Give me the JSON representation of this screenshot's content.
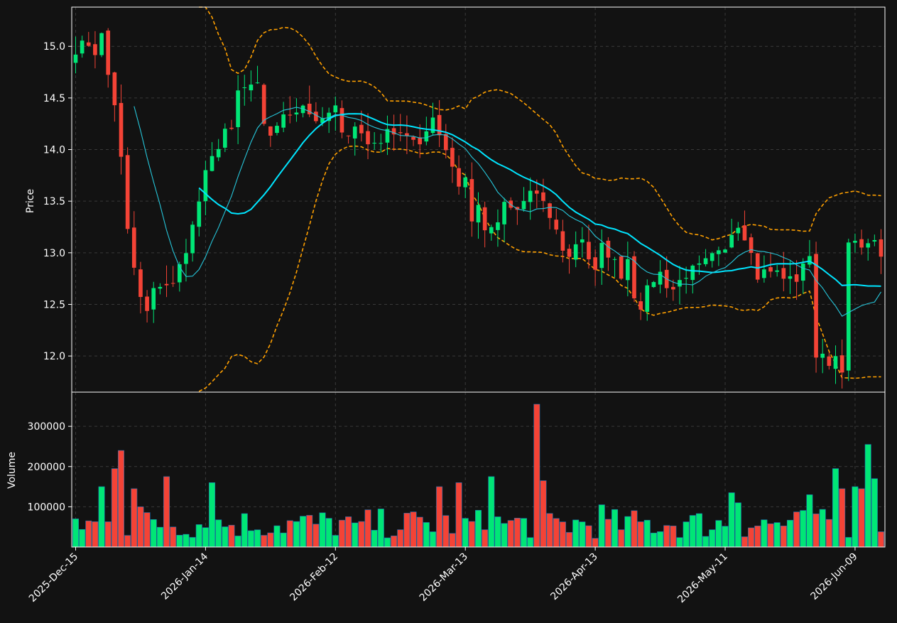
{
  "theme": {
    "background": "#121212",
    "up_color": "#00e676",
    "down_color": "#f44336",
    "volume_edge": "#1e6fb0",
    "ma_fast_color": "#26c6da",
    "ma_slow_color": "#00e5ff",
    "band_color": "#ffa000",
    "grid": true
  },
  "chart_data": {
    "type": "candlestick",
    "price_panel": {
      "ylabel": "Price",
      "ylim": [
        11.65,
        15.38
      ],
      "yticks": [
        12.0,
        12.5,
        13.0,
        13.5,
        14.0,
        14.5,
        15.0
      ],
      "ytick_labels": [
        "12.0",
        "12.5",
        "13.0",
        "13.5",
        "14.0",
        "14.5",
        "15.0"
      ]
    },
    "volume_panel": {
      "ylabel": "Volume",
      "ylim": [
        0,
        385000
      ],
      "yticks": [
        100000,
        200000,
        300000
      ],
      "ytick_labels": [
        "100000",
        "200000",
        "300000"
      ]
    },
    "x_axis": {
      "n_bars": 125,
      "xlim": [
        -0.6,
        124.6
      ],
      "ticks": [
        0,
        20,
        40,
        60,
        80,
        100,
        120
      ],
      "tick_labels": [
        "2025-Dec-15",
        "2026-Jan-14",
        "2026-Feb-12",
        "2026-Mar-13",
        "2026-Apr-13",
        "2026-May-11",
        "2026-Jun-09"
      ]
    },
    "ohlc_waypoints": [
      [
        0,
        14.98
      ],
      [
        2,
        15.03
      ],
      [
        3,
        14.95
      ],
      [
        4,
        15.1
      ],
      [
        5,
        14.72
      ],
      [
        6,
        14.45
      ],
      [
        7,
        13.9
      ],
      [
        8,
        13.2
      ],
      [
        9,
        12.85
      ],
      [
        10,
        12.55
      ],
      [
        11,
        12.42
      ],
      [
        12,
        12.62
      ],
      [
        13,
        12.7
      ],
      [
        14,
        12.7
      ],
      [
        15,
        12.68
      ],
      [
        17,
        13.05
      ],
      [
        18,
        13.25
      ],
      [
        20,
        13.75
      ],
      [
        21,
        13.9
      ],
      [
        23,
        14.2
      ],
      [
        24,
        14.15
      ],
      [
        25,
        14.55
      ],
      [
        27,
        14.62
      ],
      [
        28,
        14.6
      ],
      [
        29,
        14.2
      ],
      [
        30,
        14.15
      ],
      [
        31,
        14.25
      ],
      [
        33,
        14.35
      ],
      [
        35,
        14.45
      ],
      [
        36,
        14.35
      ],
      [
        38,
        14.25
      ],
      [
        39,
        14.35
      ],
      [
        40,
        14.4
      ],
      [
        41,
        14.12
      ],
      [
        43,
        14.25
      ],
      [
        45,
        14.05
      ],
      [
        47,
        14.1
      ],
      [
        49,
        14.2
      ],
      [
        51,
        14.15
      ],
      [
        53,
        14.0
      ],
      [
        55,
        14.35
      ],
      [
        56,
        14.15
      ],
      [
        57,
        14.02
      ],
      [
        58,
        13.85
      ],
      [
        59,
        13.65
      ],
      [
        60,
        13.75
      ],
      [
        61,
        13.3
      ],
      [
        62,
        13.45
      ],
      [
        63,
        13.25
      ],
      [
        64,
        13.2
      ],
      [
        65,
        13.3
      ],
      [
        66,
        13.45
      ],
      [
        67,
        13.42
      ],
      [
        68,
        13.4
      ],
      [
        70,
        13.6
      ],
      [
        71,
        13.55
      ],
      [
        73,
        13.35
      ],
      [
        74,
        13.2
      ],
      [
        75,
        13.05
      ],
      [
        76,
        12.95
      ],
      [
        77,
        13.1
      ],
      [
        78,
        13.15
      ],
      [
        79,
        12.95
      ],
      [
        80,
        12.8
      ],
      [
        81,
        13.05
      ],
      [
        82,
        13.0
      ],
      [
        83,
        12.9
      ],
      [
        84,
        12.8
      ],
      [
        85,
        12.95
      ],
      [
        86,
        12.6
      ],
      [
        87,
        12.5
      ],
      [
        89,
        12.75
      ],
      [
        90,
        12.8
      ],
      [
        91,
        12.7
      ],
      [
        92,
        12.65
      ],
      [
        94,
        12.8
      ],
      [
        96,
        12.85
      ],
      [
        98,
        12.95
      ],
      [
        100,
        13.0
      ],
      [
        101,
        13.2
      ],
      [
        102,
        13.3
      ],
      [
        103,
        13.15
      ],
      [
        104,
        13.05
      ],
      [
        105,
        12.8
      ],
      [
        107,
        12.85
      ],
      [
        109,
        12.75
      ],
      [
        111,
        12.75
      ],
      [
        112,
        12.85
      ],
      [
        113,
        13.0
      ],
      [
        114,
        12.0
      ],
      [
        116,
        11.95
      ],
      [
        117,
        12.0
      ],
      [
        118,
        11.9
      ],
      [
        119,
        13.05
      ],
      [
        120,
        13.1
      ],
      [
        121,
        13.0
      ],
      [
        122,
        13.15
      ],
      [
        124,
        13.0
      ]
    ],
    "volume_spikes": [
      [
        0,
        70000
      ],
      [
        4,
        150000
      ],
      [
        6,
        195000
      ],
      [
        7,
        240000
      ],
      [
        9,
        145000
      ],
      [
        10,
        100000
      ],
      [
        14,
        175000
      ],
      [
        21,
        160000
      ],
      [
        43,
        60000
      ],
      [
        56,
        150000
      ],
      [
        59,
        160000
      ],
      [
        64,
        175000
      ],
      [
        71,
        355000
      ],
      [
        72,
        165000
      ],
      [
        81,
        105000
      ],
      [
        101,
        135000
      ],
      [
        102,
        110000
      ],
      [
        113,
        130000
      ],
      [
        117,
        195000
      ],
      [
        118,
        145000
      ],
      [
        120,
        150000
      ],
      [
        121,
        145000
      ],
      [
        122,
        255000
      ],
      [
        123,
        170000
      ]
    ],
    "volume_base": [
      20000,
      95000
    ],
    "moving_averages": [
      {
        "window": 20,
        "color": "#00e5ff"
      },
      {
        "window": 10,
        "color": "#26c6da"
      }
    ],
    "bands": {
      "window": 20,
      "k": 2,
      "color": "#ffa000",
      "style": "dashed"
    }
  }
}
